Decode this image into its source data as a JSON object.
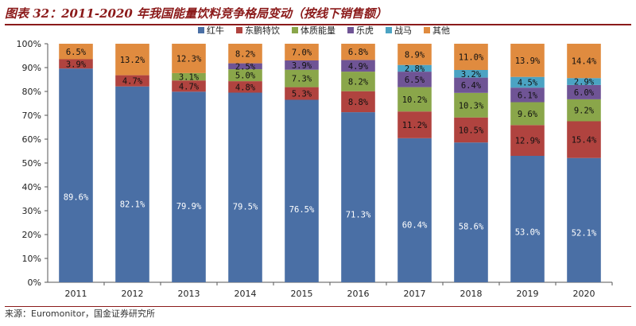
{
  "title": "图表 32：2011-2020 年我国能量饮料竞争格局变动（按线下销售额）",
  "source": "来源：Euromonitor，国金证券研究所",
  "chart_data": {
    "type": "bar",
    "stacked": true,
    "categories": [
      "2011",
      "2012",
      "2013",
      "2014",
      "2015",
      "2016",
      "2017",
      "2018",
      "2019",
      "2020"
    ],
    "series": [
      {
        "name": "红牛",
        "color": "#4a6fa5",
        "values": [
          89.6,
          82.1,
          79.9,
          79.5,
          76.5,
          71.3,
          60.4,
          58.6,
          53.0,
          52.1
        ]
      },
      {
        "name": "东鹏特饮",
        "color": "#b0433f",
        "values": [
          3.9,
          4.7,
          4.7,
          4.8,
          5.3,
          8.8,
          11.2,
          10.5,
          12.9,
          15.4
        ]
      },
      {
        "name": "体质能量",
        "color": "#8aa64a",
        "values": [
          null,
          null,
          3.1,
          5.0,
          7.3,
          8.2,
          10.2,
          10.3,
          9.6,
          9.2
        ]
      },
      {
        "name": "乐虎",
        "color": "#6f5495",
        "values": [
          null,
          null,
          null,
          2.5,
          3.9,
          4.9,
          6.5,
          6.4,
          6.1,
          6.0
        ]
      },
      {
        "name": "战马",
        "color": "#4ba3c3",
        "values": [
          null,
          null,
          null,
          null,
          null,
          null,
          2.8,
          3.2,
          4.5,
          2.9
        ]
      },
      {
        "name": "其他",
        "color": "#e08b3f",
        "values": [
          6.5,
          13.2,
          12.3,
          8.2,
          7.0,
          6.8,
          8.9,
          11.0,
          13.9,
          14.4
        ]
      }
    ],
    "label_suffix": "%",
    "ylim": [
      0,
      100
    ],
    "yticks": [
      "0%",
      "10%",
      "20%",
      "30%",
      "40%",
      "50%",
      "60%",
      "70%",
      "80%",
      "90%",
      "100%"
    ],
    "legend_position": "top"
  }
}
